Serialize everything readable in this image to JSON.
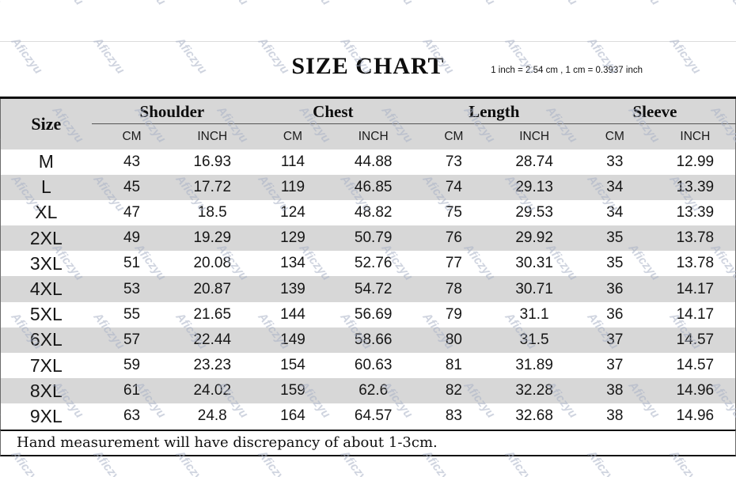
{
  "header": {
    "title": "SIZE CHART",
    "conversion_note": "1 inch = 2.54 cm , 1 cm = 0.3937 inch"
  },
  "watermark": {
    "text": "Aficzyu",
    "color": "#a9b1c6"
  },
  "footer": {
    "note": "Hand measurement will have discrepancy of about 1-3cm."
  },
  "chart_data": {
    "type": "table",
    "title": "SIZE CHART",
    "size_column_header": "Size",
    "column_groups": [
      "Shoulder",
      "Chest",
      "Length",
      "Sleeve"
    ],
    "unit_subheaders": [
      "CM",
      "INCH"
    ],
    "rows": [
      {
        "size": "M",
        "values": [
          "43",
          "16.93",
          "114",
          "44.88",
          "73",
          "28.74",
          "33",
          "12.99"
        ]
      },
      {
        "size": "L",
        "values": [
          "45",
          "17.72",
          "119",
          "46.85",
          "74",
          "29.13",
          "34",
          "13.39"
        ]
      },
      {
        "size": "XL",
        "values": [
          "47",
          "18.5",
          "124",
          "48.82",
          "75",
          "29.53",
          "34",
          "13.39"
        ]
      },
      {
        "size": "2XL",
        "values": [
          "49",
          "19.29",
          "129",
          "50.79",
          "76",
          "29.92",
          "35",
          "13.78"
        ]
      },
      {
        "size": "3XL",
        "values": [
          "51",
          "20.08",
          "134",
          "52.76",
          "77",
          "30.31",
          "35",
          "13.78"
        ]
      },
      {
        "size": "4XL",
        "values": [
          "53",
          "20.87",
          "139",
          "54.72",
          "78",
          "30.71",
          "36",
          "14.17"
        ]
      },
      {
        "size": "5XL",
        "values": [
          "55",
          "21.65",
          "144",
          "56.69",
          "79",
          "31.1",
          "36",
          "14.17"
        ]
      },
      {
        "size": "6XL",
        "values": [
          "57",
          "22.44",
          "149",
          "58.66",
          "80",
          "31.5",
          "37",
          "14.57"
        ]
      },
      {
        "size": "7XL",
        "values": [
          "59",
          "23.23",
          "154",
          "60.63",
          "81",
          "31.89",
          "37",
          "14.57"
        ]
      },
      {
        "size": "8XL",
        "values": [
          "61",
          "24.02",
          "159",
          "62.6",
          "82",
          "32.28",
          "38",
          "14.96"
        ]
      },
      {
        "size": "9XL",
        "values": [
          "63",
          "24.8",
          "164",
          "64.57",
          "83",
          "32.68",
          "38",
          "14.96"
        ]
      }
    ]
  }
}
